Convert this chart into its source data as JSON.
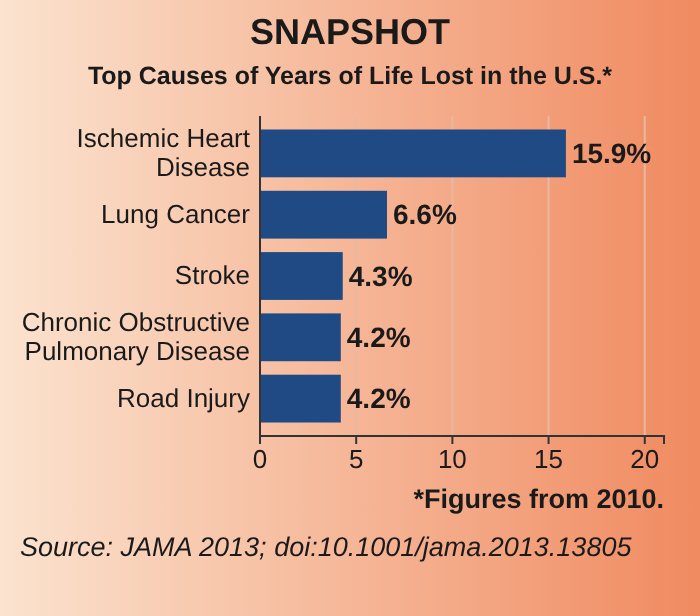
{
  "chart_data": {
    "type": "bar",
    "orientation": "horizontal",
    "title": "SNAPSHOT",
    "subtitle": "Top Causes of Years of Life Lost in the U.S.*",
    "categories": [
      "Ischemic Heart Disease",
      "Lung Cancer",
      "Stroke",
      "Chronic Obstructive Pulmonary Disease",
      "Road Injury"
    ],
    "values": [
      15.9,
      6.6,
      4.3,
      4.2,
      4.2
    ],
    "color": "#1f4a84",
    "value_labels": [
      "15.9%",
      "6.6%",
      "4.3%",
      "4.2%",
      "4.2%"
    ],
    "xlim": [
      0,
      21
    ],
    "xticks": [
      0,
      5,
      10,
      15,
      20
    ],
    "grid": "x",
    "annotations": [
      "*Figures from 2010.",
      "Source: JAMA 2013; doi:10.1001/jama.2013.13805"
    ]
  }
}
